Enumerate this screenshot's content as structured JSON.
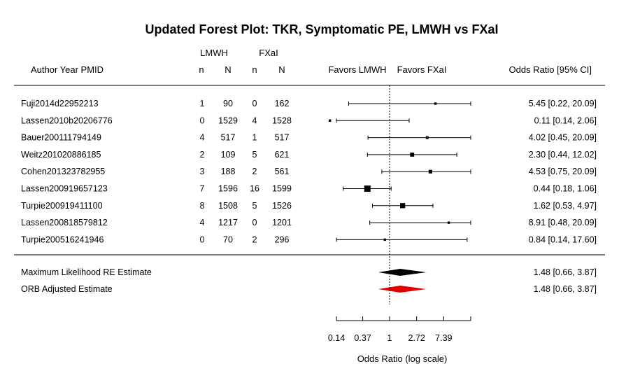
{
  "chart_data": {
    "type": "forest",
    "title": "Updated Forest Plot: TKR, Symptomatic PE, LMWH vs FXaI",
    "column_headers": {
      "study": "Author Year PMID",
      "group1": "LMWH",
      "group2": "FXaI",
      "n": "n",
      "N": "N",
      "favors_left": "Favors LMWH",
      "favors_right": "Favors FXaI",
      "estimate": "Odds Ratio [95% CI]"
    },
    "xlabel": "Odds Ratio (log scale)",
    "x_scale": "log",
    "xlim": [
      0.14,
      20.09
    ],
    "reference_line": 1,
    "ticks": [
      {
        "value": 0.14,
        "label": "0.14"
      },
      {
        "value": 0.37,
        "label": "0.37"
      },
      {
        "value": 1,
        "label": "1"
      },
      {
        "value": 2.72,
        "label": "2.72"
      },
      {
        "value": 7.39,
        "label": "7.39"
      },
      {
        "value": 20.09,
        "label": ""
      }
    ],
    "studies": [
      {
        "label": "Fuji2014d22952213",
        "n1": "1",
        "N1": "90",
        "n2": "0",
        "N2": "162",
        "or": 5.45,
        "lo": 0.22,
        "hi": 20.09,
        "text": "5.45 [0.22, 20.09]",
        "weight": 0.2
      },
      {
        "label": "Lassen2010b20206776",
        "n1": "0",
        "N1": "1529",
        "n2": "4",
        "N2": "1528",
        "or": 0.11,
        "lo": 0.14,
        "hi": 2.06,
        "text": "0.11 [0.14,  2.06]",
        "weight": 0.2
      },
      {
        "label": "Bauer200111794149",
        "n1": "4",
        "N1": "517",
        "n2": "1",
        "N2": "517",
        "or": 4.02,
        "lo": 0.45,
        "hi": 20.09,
        "text": "4.02 [0.45, 20.09]",
        "weight": 0.3
      },
      {
        "label": "Weitz201020886185",
        "n1": "2",
        "N1": "109",
        "n2": "5",
        "N2": "621",
        "or": 2.3,
        "lo": 0.44,
        "hi": 12.02,
        "text": "2.30 [0.44, 12.02]",
        "weight": 0.55
      },
      {
        "label": "Cohen201323782955",
        "n1": "3",
        "N1": "188",
        "n2": "2",
        "N2": "561",
        "or": 4.53,
        "lo": 0.75,
        "hi": 20.09,
        "text": "4.53 [0.75, 20.09]",
        "weight": 0.45
      },
      {
        "label": "Lassen200919657123",
        "n1": "7",
        "N1": "1596",
        "n2": "16",
        "N2": "1599",
        "or": 0.44,
        "lo": 0.18,
        "hi": 1.06,
        "text": "0.44 [0.18,  1.06]",
        "weight": 1.0
      },
      {
        "label": "Turpie200919411100",
        "n1": "8",
        "N1": "1508",
        "n2": "5",
        "N2": "1526",
        "or": 1.62,
        "lo": 0.53,
        "hi": 4.97,
        "text": "1.62 [0.53,  4.97]",
        "weight": 0.75
      },
      {
        "label": "Lassen200818579812",
        "n1": "4",
        "N1": "1217",
        "n2": "0",
        "N2": "1201",
        "or": 8.91,
        "lo": 0.48,
        "hi": 20.09,
        "text": "8.91 [0.48, 20.09]",
        "weight": 0.2
      },
      {
        "label": "Turpie200516241946",
        "n1": "0",
        "N1": "70",
        "n2": "2",
        "N2": "296",
        "or": 0.84,
        "lo": 0.14,
        "hi": 17.6,
        "text": "0.84 [0.14, 17.60]",
        "weight": 0.2
      }
    ],
    "summaries": [
      {
        "label": "Maximum Likelihood RE Estimate",
        "est": 1.48,
        "lo": 0.66,
        "hi": 3.87,
        "text": "1.48 [0.66, 3.87]",
        "color": "#000000"
      },
      {
        "label": "ORB Adjusted Estimate",
        "est": 1.48,
        "lo": 0.66,
        "hi": 3.87,
        "text": "1.48 [0.66, 3.87]",
        "color": "#e00000"
      }
    ]
  }
}
